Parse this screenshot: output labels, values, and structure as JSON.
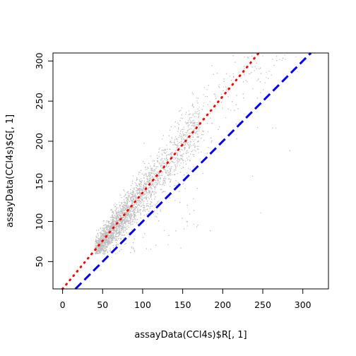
{
  "chart_data": {
    "type": "scatter",
    "title": "",
    "xlabel": "assayData(CCl4s)$R[, 1]",
    "ylabel": "assayData(CCl4s)$G[, 1]",
    "xlim": [
      -12,
      332
    ],
    "ylim": [
      16,
      310
    ],
    "x_ticks": [
      0,
      50,
      100,
      150,
      200,
      250,
      300
    ],
    "y_ticks": [
      50,
      100,
      150,
      200,
      250,
      300
    ],
    "grid": false,
    "point_color": "#bebebe",
    "point_cloud": {
      "description_points": [
        {
          "x": 40,
          "y": 65
        },
        {
          "x": 55,
          "y": 95
        },
        {
          "x": 75,
          "y": 120
        },
        {
          "x": 100,
          "y": 150
        },
        {
          "x": 130,
          "y": 185
        },
        {
          "x": 160,
          "y": 220
        },
        {
          "x": 190,
          "y": 255
        },
        {
          "x": 220,
          "y": 285
        },
        {
          "x": 250,
          "y": 305
        }
      ]
    },
    "series": [
      {
        "style": "dotted",
        "color": "#ff0000",
        "intercept": 16,
        "slope": 1.2
      },
      {
        "style": "dashed",
        "color": "#0000ff",
        "intercept": 0,
        "slope": 1.0
      }
    ]
  }
}
